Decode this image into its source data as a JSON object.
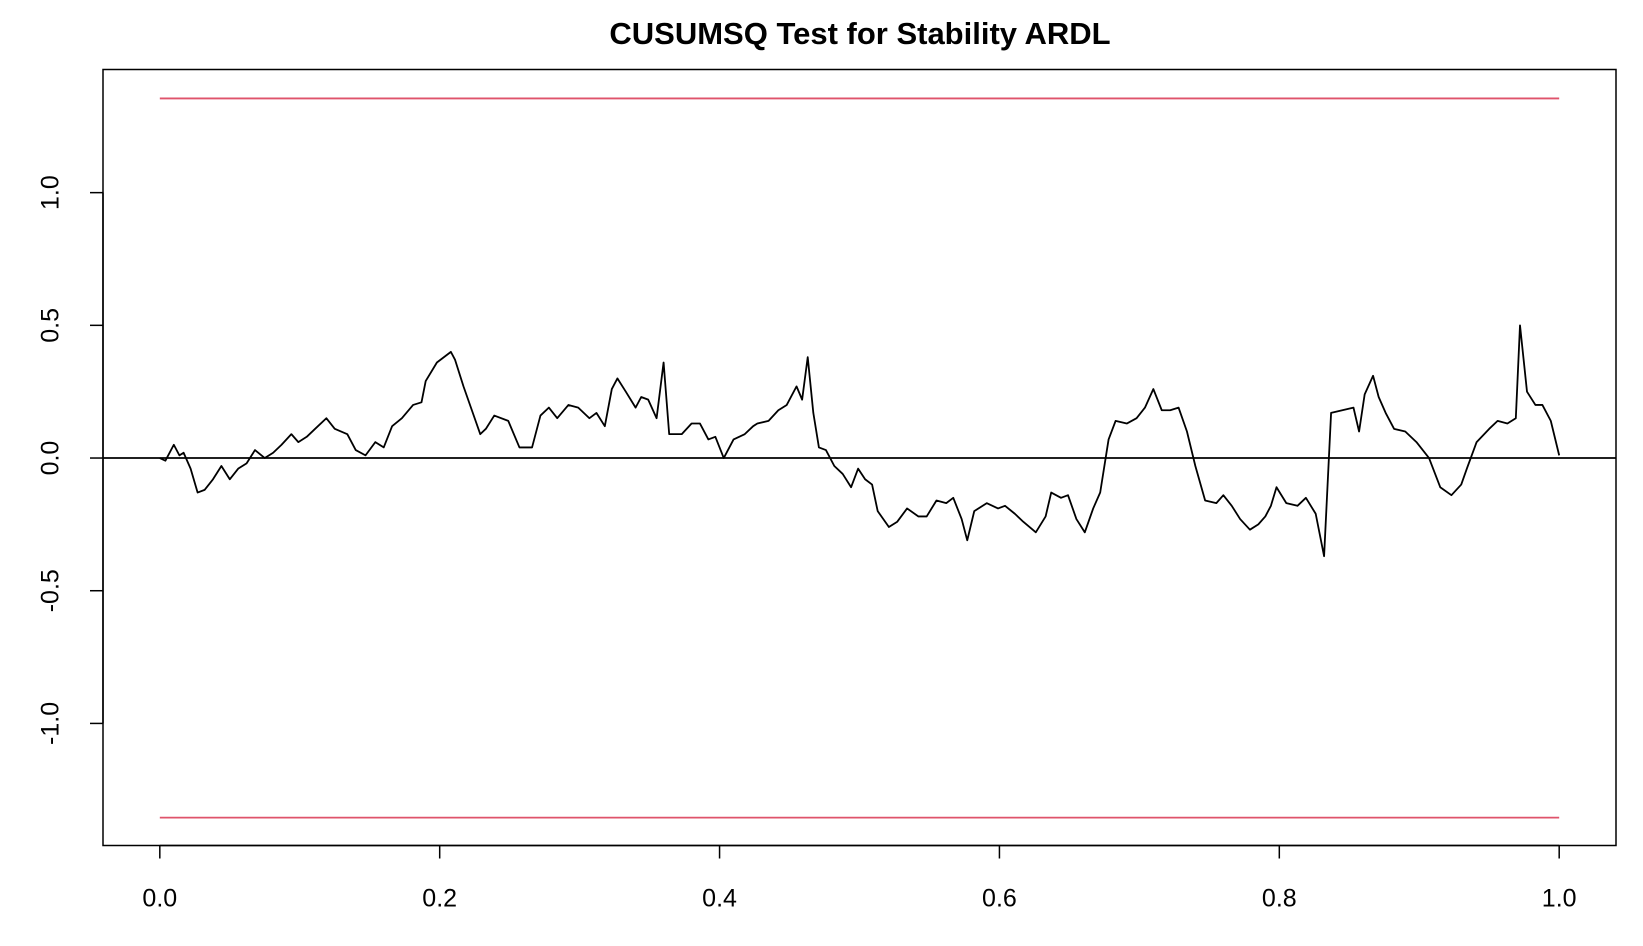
{
  "chart_data": {
    "type": "line",
    "title": "CUSUMSQ Test for Stability ARDL",
    "color": "#000000",
    "xlim": [
      -0.0406,
      1.0406
    ],
    "ylim": [
      -1.46,
      1.464
    ],
    "xticks": [
      {
        "value": 0,
        "label": "0.0"
      },
      0.2,
      0.4,
      0.6,
      0.8,
      {
        "value": 1,
        "label": "1.0"
      }
    ],
    "yticks": [
      {
        "value": -1,
        "label": "-1.0"
      },
      -0.5,
      {
        "value": 0,
        "label": "0.0"
      },
      0.5,
      {
        "value": 1,
        "label": "1.0"
      }
    ],
    "bounds": {
      "values": [
        1.355,
        -1.355
      ],
      "color": "#DF536B"
    },
    "hline": {
      "value": 0,
      "color": "#000000"
    },
    "x": [
      0.0,
      0.004,
      0.01,
      0.014,
      0.017,
      0.022,
      0.027,
      0.032,
      0.038,
      0.044,
      0.05,
      0.056,
      0.062,
      0.068,
      0.075,
      0.081,
      0.087,
      0.094,
      0.099,
      0.105,
      0.111,
      0.119,
      0.125,
      0.134,
      0.14,
      0.147,
      0.154,
      0.16,
      0.166,
      0.173,
      0.181,
      0.187,
      0.19,
      0.198,
      0.208,
      0.211,
      0.217,
      0.223,
      0.229,
      0.233,
      0.239,
      0.249,
      0.257,
      0.266,
      0.272,
      0.278,
      0.284,
      0.292,
      0.299,
      0.307,
      0.312,
      0.318,
      0.323,
      0.327,
      0.333,
      0.34,
      0.344,
      0.349,
      0.355,
      0.36,
      0.364,
      0.373,
      0.38,
      0.386,
      0.392,
      0.397,
      0.403,
      0.41,
      0.418,
      0.424,
      0.427,
      0.435,
      0.442,
      0.448,
      0.455,
      0.459,
      0.463,
      0.467,
      0.471,
      0.476,
      0.482,
      0.488,
      0.494,
      0.499,
      0.504,
      0.509,
      0.513,
      0.521,
      0.527,
      0.534,
      0.542,
      0.548,
      0.555,
      0.562,
      0.567,
      0.573,
      0.577,
      0.582,
      0.591,
      0.599,
      0.604,
      0.611,
      0.617,
      0.626,
      0.633,
      0.637,
      0.644,
      0.649,
      0.655,
      0.661,
      0.667,
      0.672,
      0.678,
      0.683,
      0.691,
      0.698,
      0.704,
      0.71,
      0.716,
      0.722,
      0.728,
      0.734,
      0.74,
      0.747,
      0.755,
      0.76,
      0.766,
      0.772,
      0.779,
      0.785,
      0.79,
      0.794,
      0.798,
      0.805,
      0.813,
      0.819,
      0.826,
      0.832,
      0.837,
      0.845,
      0.853,
      0.857,
      0.861,
      0.867,
      0.871,
      0.876,
      0.882,
      0.89,
      0.898,
      0.907,
      0.915,
      0.923,
      0.93,
      0.934,
      0.941,
      0.95,
      0.956,
      0.963,
      0.969,
      0.972,
      0.977,
      0.983,
      0.988,
      0.994,
      1.0
    ],
    "values": [
      0,
      -0.01,
      0.05,
      0.01,
      0.02,
      -0.04,
      -0.13,
      -0.12,
      -0.08,
      -0.03,
      -0.08,
      -0.04,
      -0.02,
      0.03,
      0.0,
      0.02,
      0.05,
      0.09,
      0.06,
      0.08,
      0.11,
      0.15,
      0.11,
      0.09,
      0.03,
      0.01,
      0.06,
      0.04,
      0.12,
      0.15,
      0.2,
      0.21,
      0.29,
      0.36,
      0.4,
      0.37,
      0.27,
      0.18,
      0.09,
      0.11,
      0.16,
      0.14,
      0.04,
      0.04,
      0.16,
      0.19,
      0.15,
      0.2,
      0.19,
      0.15,
      0.17,
      0.12,
      0.26,
      0.3,
      0.25,
      0.19,
      0.23,
      0.22,
      0.15,
      0.36,
      0.09,
      0.09,
      0.13,
      0.13,
      0.07,
      0.08,
      0.0,
      0.07,
      0.09,
      0.12,
      0.13,
      0.14,
      0.18,
      0.2,
      0.27,
      0.22,
      0.38,
      0.17,
      0.04,
      0.03,
      -0.03,
      -0.06,
      -0.11,
      -0.04,
      -0.08,
      -0.1,
      -0.2,
      -0.26,
      -0.24,
      -0.19,
      -0.22,
      -0.22,
      -0.16,
      -0.17,
      -0.15,
      -0.23,
      -0.31,
      -0.2,
      -0.17,
      -0.19,
      -0.18,
      -0.21,
      -0.24,
      -0.28,
      -0.22,
      -0.13,
      -0.15,
      -0.14,
      -0.23,
      -0.28,
      -0.19,
      -0.13,
      0.07,
      0.14,
      0.13,
      0.15,
      0.19,
      0.26,
      0.18,
      0.18,
      0.19,
      0.1,
      -0.03,
      -0.16,
      -0.17,
      -0.14,
      -0.18,
      -0.23,
      -0.27,
      -0.25,
      -0.22,
      -0.18,
      -0.11,
      -0.17,
      -0.18,
      -0.15,
      -0.21,
      -0.37,
      0.17,
      0.18,
      0.19,
      0.1,
      0.24,
      0.31,
      0.23,
      0.17,
      0.11,
      0.1,
      0.06,
      0.0,
      -0.11,
      -0.14,
      -0.1,
      -0.04,
      0.06,
      0.11,
      0.14,
      0.13,
      0.15,
      0.5,
      0.25,
      0.2,
      0.2,
      0.14,
      0.01
    ]
  }
}
